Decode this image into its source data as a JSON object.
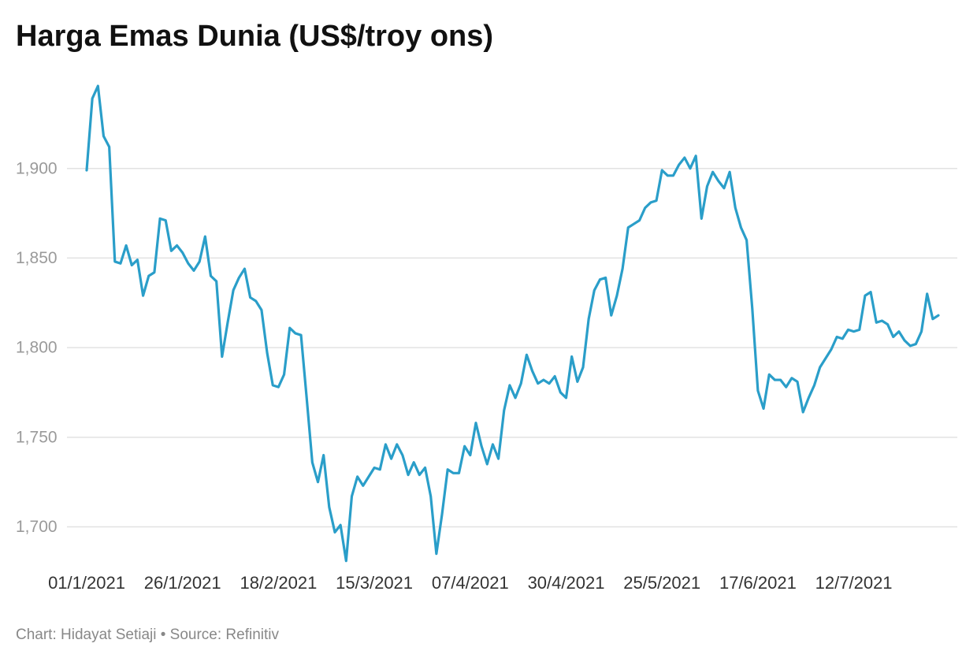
{
  "chart_data": {
    "type": "line",
    "title": "Harga Emas Dunia (US$/troy ons)",
    "source": "Chart: Hidayat Setiaji • Source: Refinitiv",
    "categories": [
      "01/1/2021",
      null,
      null,
      null,
      null,
      null,
      null,
      null,
      null,
      null,
      null,
      null,
      null,
      null,
      null,
      null,
      null,
      "26/1/2021",
      null,
      null,
      null,
      null,
      null,
      null,
      null,
      null,
      null,
      null,
      null,
      null,
      null,
      null,
      null,
      null,
      "18/2/2021",
      null,
      null,
      null,
      null,
      null,
      null,
      null,
      null,
      null,
      null,
      null,
      null,
      null,
      null,
      null,
      null,
      "15/3/2021",
      null,
      null,
      null,
      null,
      null,
      null,
      null,
      null,
      null,
      null,
      null,
      null,
      null,
      null,
      null,
      null,
      "07/4/2021",
      null,
      null,
      null,
      null,
      null,
      null,
      null,
      null,
      null,
      null,
      null,
      null,
      null,
      null,
      null,
      null,
      "30/4/2021",
      null,
      null,
      null,
      null,
      null,
      null,
      null,
      null,
      null,
      null,
      null,
      null,
      null,
      null,
      null,
      null,
      "25/5/2021",
      null,
      null,
      null,
      null,
      null,
      null,
      null,
      null,
      null,
      null,
      null,
      null,
      null,
      null,
      null,
      null,
      "17/6/2021",
      null,
      null,
      null,
      null,
      null,
      null,
      null,
      null,
      null,
      null,
      null,
      null,
      null,
      null,
      null,
      null,
      "12/7/2021",
      null,
      null,
      null,
      null,
      null,
      null,
      null,
      null,
      null,
      null,
      null,
      null,
      null,
      null,
      null
    ],
    "values": [
      1899,
      1939,
      1946,
      1918,
      1912,
      1848,
      1847,
      1857,
      1846,
      1849,
      1829,
      1840,
      1842,
      1872,
      1871,
      1854,
      1857,
      1853,
      1847,
      1843,
      1848,
      1862,
      1840,
      1837,
      1795,
      1814,
      1832,
      1839,
      1844,
      1828,
      1826,
      1821,
      1797,
      1779,
      1778,
      1785,
      1811,
      1808,
      1807,
      1772,
      1736,
      1725,
      1740,
      1711,
      1697,
      1701,
      1681,
      1717,
      1728,
      1723,
      1728,
      1733,
      1732,
      1746,
      1738,
      1746,
      1740,
      1729,
      1736,
      1729,
      1733,
      1717,
      1685,
      1707,
      1732,
      1730,
      1730,
      1745,
      1740,
      1758,
      1745,
      1735,
      1746,
      1738,
      1765,
      1779,
      1772,
      1780,
      1796,
      1787,
      1780,
      1782,
      1780,
      1784,
      1775,
      1772,
      1795,
      1781,
      1789,
      1816,
      1832,
      1838,
      1839,
      1818,
      1829,
      1844,
      1867,
      1869,
      1871,
      1878,
      1881,
      1882,
      1899,
      1896,
      1896,
      1902,
      1906,
      1900,
      1907,
      1872,
      1890,
      1898,
      1893,
      1889,
      1898,
      1878,
      1867,
      1860,
      1822,
      1776,
      1766,
      1785,
      1782,
      1782,
      1778,
      1783,
      1781,
      1764,
      1772,
      1779,
      1789,
      1794,
      1799,
      1806,
      1805,
      1810,
      1809,
      1810,
      1829,
      1831,
      1814,
      1815,
      1813,
      1806,
      1809,
      1804,
      1801,
      1802,
      1809,
      1830,
      1816,
      1818
    ],
    "color": "#2a9ec9",
    "ylim": [
      1680,
      1950
    ],
    "yticks": [
      {
        "value": 1700,
        "label": "1,700"
      },
      {
        "value": 1750,
        "label": "1,750"
      },
      {
        "value": 1800,
        "label": "1,800"
      },
      {
        "value": 1850,
        "label": "1,850"
      },
      {
        "value": 1900,
        "label": "1,900"
      }
    ],
    "grid": true
  }
}
